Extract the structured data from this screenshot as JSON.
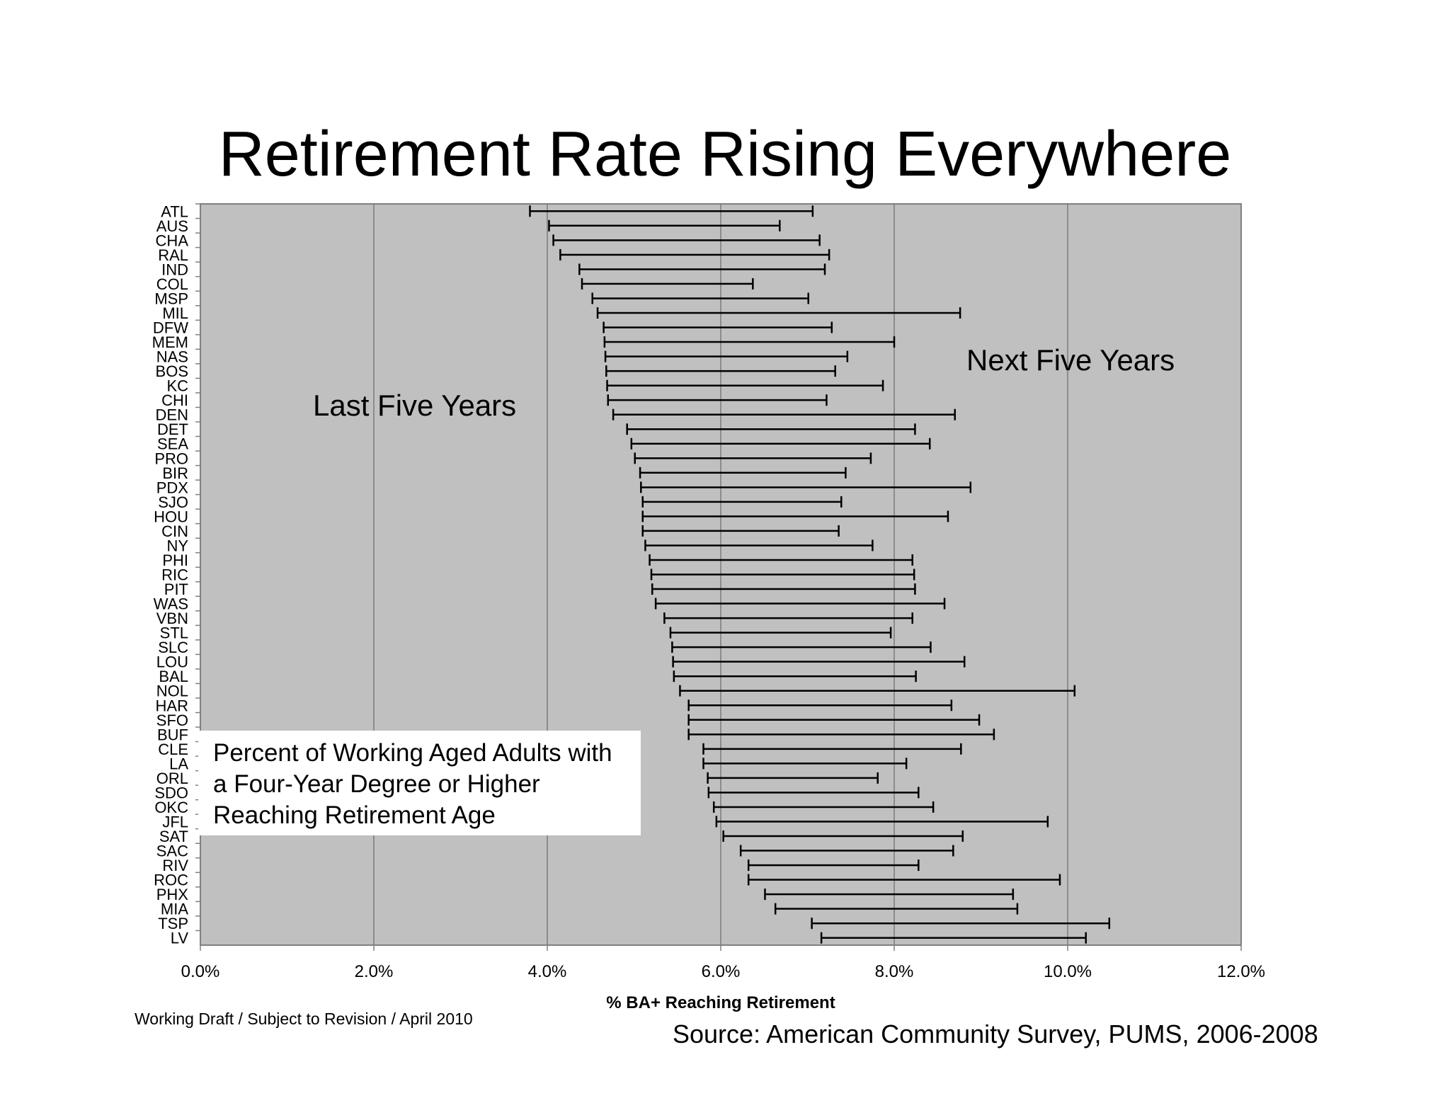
{
  "chart_data": {
    "type": "range-bar",
    "title": "Retirement Rate Rising Everywhere",
    "xlabel": "% BA+ Reaching Retirement",
    "ylabel": "",
    "xlim": [
      0,
      12
    ],
    "x_ticks": [
      "0.0%",
      "2.0%",
      "4.0%",
      "6.0%",
      "8.0%",
      "10.0%",
      "12.0%"
    ],
    "grid": "vertical",
    "annotations": {
      "left_label": "Last Five Years",
      "right_label": "Next Five Years",
      "description_lines": [
        "Percent of Working Aged Adults with",
        "a Four-Year Degree or Higher",
        "Reaching Retirement Age"
      ]
    },
    "categories": [
      "ATL",
      "AUS",
      "CHA",
      "RAL",
      "IND",
      "COL",
      "MSP",
      "MIL",
      "DFW",
      "MEM",
      "NAS",
      "BOS",
      "KC",
      "CHI",
      "DEN",
      "DET",
      "SEA",
      "PRO",
      "BIR",
      "PDX",
      "SJO",
      "HOU",
      "CIN",
      "NY",
      "PHI",
      "RIC",
      "PIT",
      "WAS",
      "VBN",
      "STL",
      "SLC",
      "LOU",
      "BAL",
      "NOL",
      "HAR",
      "SFO",
      "BUF",
      "CLE",
      "LA",
      "ORL",
      "SDO",
      "OKC",
      "JFL",
      "SAT",
      "SAC",
      "RIV",
      "ROC",
      "PHX",
      "MIA",
      "TSP",
      "LV"
    ],
    "series": [
      {
        "name": "Last Five Years",
        "values": [
          3.8,
          4.02,
          4.07,
          4.15,
          4.37,
          4.4,
          4.52,
          4.58,
          4.65,
          4.66,
          4.67,
          4.68,
          4.69,
          4.7,
          4.76,
          4.92,
          4.97,
          5.01,
          5.07,
          5.08,
          5.1,
          5.1,
          5.1,
          5.13,
          5.18,
          5.2,
          5.21,
          5.25,
          5.35,
          5.42,
          5.44,
          5.45,
          5.46,
          5.53,
          5.63,
          5.63,
          5.63,
          5.8,
          5.8,
          5.85,
          5.86,
          5.92,
          5.95,
          6.03,
          6.23,
          6.32,
          6.32,
          6.51,
          6.63,
          7.05,
          7.16
        ]
      },
      {
        "name": "Next Five Years",
        "values": [
          7.06,
          6.68,
          7.14,
          7.25,
          7.2,
          6.37,
          7.01,
          8.76,
          7.28,
          8.0,
          7.46,
          7.32,
          7.87,
          7.22,
          8.7,
          8.24,
          8.41,
          7.73,
          7.44,
          8.88,
          7.39,
          8.62,
          7.36,
          7.75,
          8.21,
          8.23,
          8.24,
          8.58,
          8.21,
          7.96,
          8.42,
          8.81,
          8.25,
          10.08,
          8.66,
          8.98,
          9.15,
          8.77,
          8.14,
          7.81,
          8.28,
          8.45,
          9.77,
          8.79,
          8.68,
          8.28,
          9.91,
          9.37,
          9.42,
          10.48,
          10.21
        ]
      }
    ]
  },
  "footer": {
    "draft_note": "Working Draft / Subject to Revision / April 2010",
    "source": "Source: American Community Survey, PUMS, 2006-2008"
  }
}
